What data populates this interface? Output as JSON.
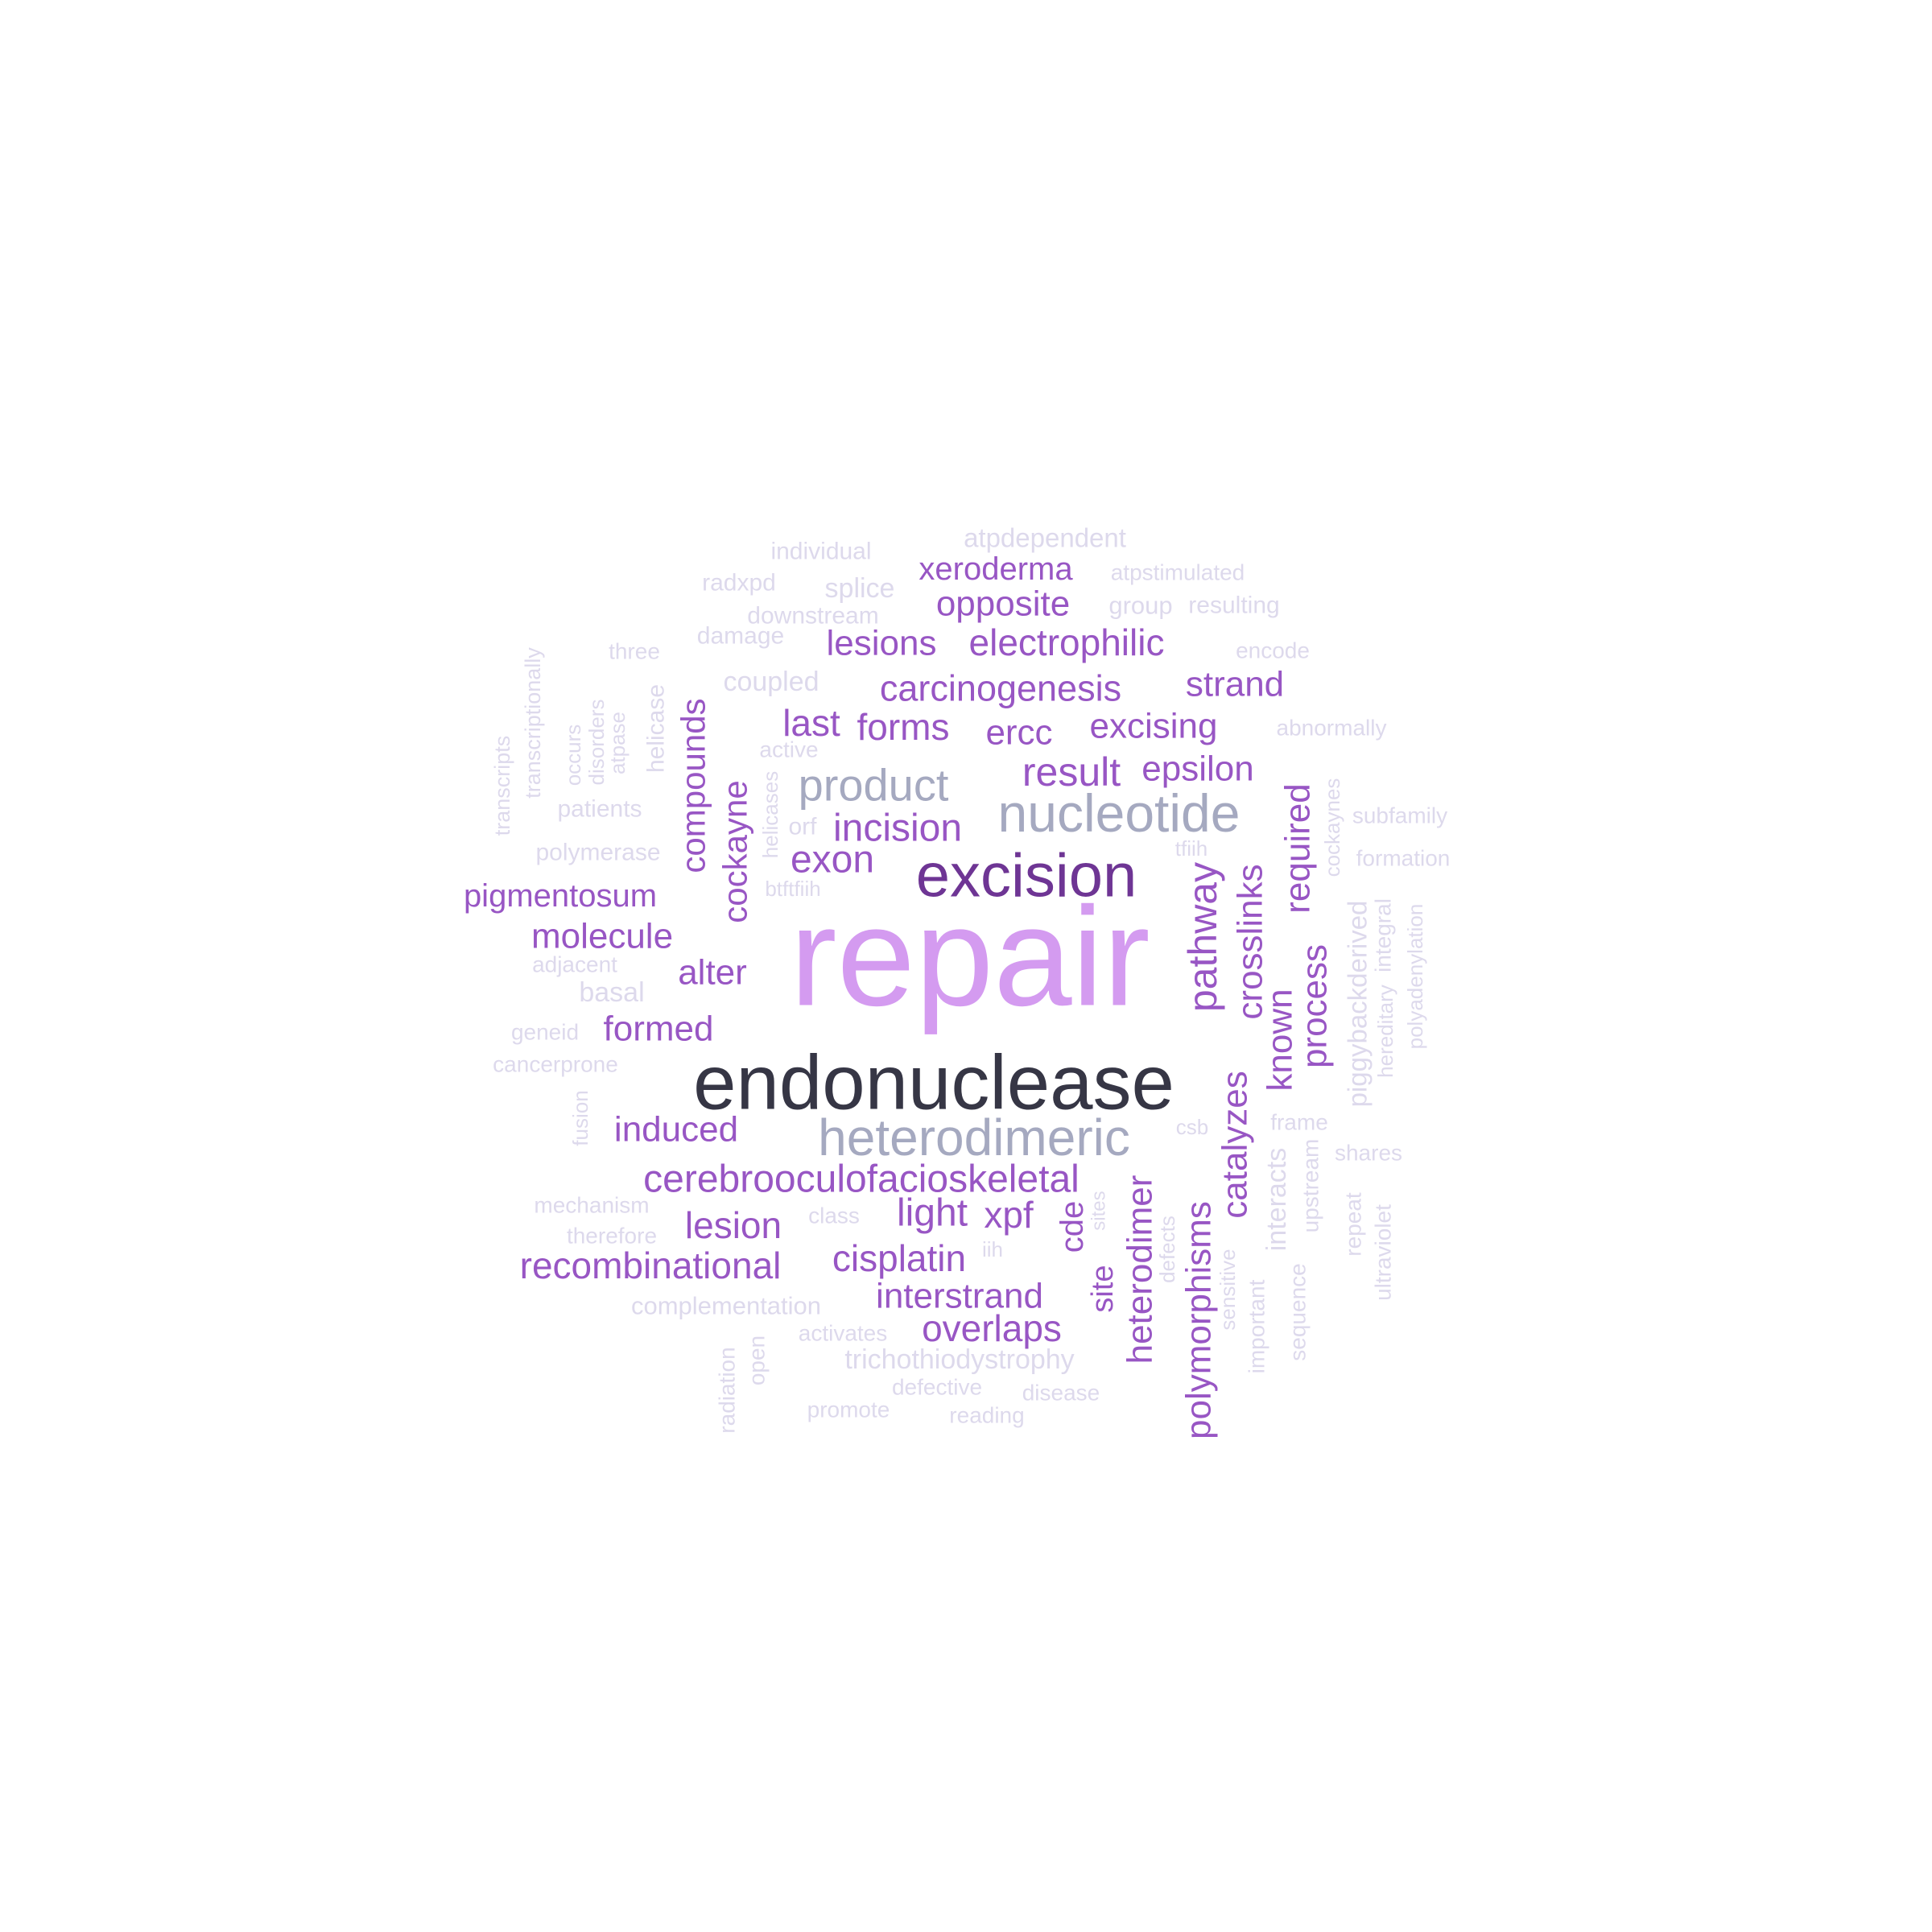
{
  "palette": {
    "c1": "#d49bf0",
    "c2": "#363645",
    "c3": "#6e3594",
    "c4": "#a5a9c0",
    "c5": "#9856c4",
    "c6": "#ddd9ec"
  },
  "words": [
    {
      "text": "repair",
      "color": "c1"
    },
    {
      "text": "endonuclease",
      "color": "c2"
    },
    {
      "text": "excision",
      "color": "c3"
    },
    {
      "text": "heterodimeric",
      "color": "c4"
    },
    {
      "text": "nucleotide",
      "color": "c4"
    },
    {
      "text": "product",
      "color": "c4"
    },
    {
      "text": "cerebrooculofacioskeletal",
      "color": "c5"
    },
    {
      "text": "recombinational",
      "color": "c5"
    },
    {
      "text": "carcinogenesis",
      "color": "c5"
    },
    {
      "text": "electrophilic",
      "color": "c5"
    },
    {
      "text": "pigmentosum",
      "color": "c5"
    },
    {
      "text": "interstrand",
      "color": "c5"
    },
    {
      "text": "polymorphisms",
      "color": "c5"
    },
    {
      "text": "heterodimer",
      "color": "c5"
    },
    {
      "text": "compounds",
      "color": "c5"
    },
    {
      "text": "cockayne",
      "color": "c5"
    },
    {
      "text": "opposite",
      "color": "c5"
    },
    {
      "text": "xeroderma",
      "color": "c5"
    },
    {
      "text": "lesions",
      "color": "c5"
    },
    {
      "text": "strand",
      "color": "c5"
    },
    {
      "text": "excising",
      "color": "c5"
    },
    {
      "text": "forms",
      "color": "c5"
    },
    {
      "text": "last",
      "color": "c5"
    },
    {
      "text": "ercc",
      "color": "c5"
    },
    {
      "text": "result",
      "color": "c5"
    },
    {
      "text": "epsilon",
      "color": "c5"
    },
    {
      "text": "incision",
      "color": "c5"
    },
    {
      "text": "exon",
      "color": "c5"
    },
    {
      "text": "molecule",
      "color": "c5"
    },
    {
      "text": "alter",
      "color": "c5"
    },
    {
      "text": "formed",
      "color": "c5"
    },
    {
      "text": "induced",
      "color": "c5"
    },
    {
      "text": "lesion",
      "color": "c5"
    },
    {
      "text": "light",
      "color": "c5"
    },
    {
      "text": "xpf",
      "color": "c5"
    },
    {
      "text": "cisplatin",
      "color": "c5"
    },
    {
      "text": "overlaps",
      "color": "c5"
    },
    {
      "text": "pathway",
      "color": "c5"
    },
    {
      "text": "crosslinks",
      "color": "c5"
    },
    {
      "text": "required",
      "color": "c5"
    },
    {
      "text": "known",
      "color": "c5"
    },
    {
      "text": "process",
      "color": "c5"
    },
    {
      "text": "catalyzes",
      "color": "c5"
    },
    {
      "text": "cde",
      "color": "c5"
    },
    {
      "text": "site",
      "color": "c5"
    },
    {
      "text": "atpdependent",
      "color": "c6"
    },
    {
      "text": "individual",
      "color": "c6"
    },
    {
      "text": "radxpd",
      "color": "c6"
    },
    {
      "text": "splice",
      "color": "c6"
    },
    {
      "text": "atpstimulated",
      "color": "c6"
    },
    {
      "text": "downstream",
      "color": "c6"
    },
    {
      "text": "group",
      "color": "c6"
    },
    {
      "text": "resulting",
      "color": "c6"
    },
    {
      "text": "damage",
      "color": "c6"
    },
    {
      "text": "three",
      "color": "c6"
    },
    {
      "text": "encode",
      "color": "c6"
    },
    {
      "text": "coupled",
      "color": "c6"
    },
    {
      "text": "abnormally",
      "color": "c6"
    },
    {
      "text": "active",
      "color": "c6"
    },
    {
      "text": "patients",
      "color": "c6"
    },
    {
      "text": "orf",
      "color": "c6"
    },
    {
      "text": "subfamily",
      "color": "c6"
    },
    {
      "text": "polymerase",
      "color": "c6"
    },
    {
      "text": "tfiih",
      "color": "c6"
    },
    {
      "text": "formation",
      "color": "c6"
    },
    {
      "text": "btftfiih",
      "color": "c6"
    },
    {
      "text": "adjacent",
      "color": "c6"
    },
    {
      "text": "basal",
      "color": "c6"
    },
    {
      "text": "geneid",
      "color": "c6"
    },
    {
      "text": "cancerprone",
      "color": "c6"
    },
    {
      "text": "csb",
      "color": "c6"
    },
    {
      "text": "frame",
      "color": "c6"
    },
    {
      "text": "shares",
      "color": "c6"
    },
    {
      "text": "mechanism",
      "color": "c6"
    },
    {
      "text": "class",
      "color": "c6"
    },
    {
      "text": "therefore",
      "color": "c6"
    },
    {
      "text": "iih",
      "color": "c6"
    },
    {
      "text": "complementation",
      "color": "c6"
    },
    {
      "text": "activates",
      "color": "c6"
    },
    {
      "text": "trichothiodystrophy",
      "color": "c6"
    },
    {
      "text": "defective",
      "color": "c6"
    },
    {
      "text": "disease",
      "color": "c6"
    },
    {
      "text": "promote",
      "color": "c6"
    },
    {
      "text": "reading",
      "color": "c6"
    },
    {
      "text": "transcriptionally",
      "color": "c6"
    },
    {
      "text": "transcripts",
      "color": "c6"
    },
    {
      "text": "occurs",
      "color": "c6"
    },
    {
      "text": "disorders",
      "color": "c6"
    },
    {
      "text": "atpase",
      "color": "c6"
    },
    {
      "text": "helicase",
      "color": "c6"
    },
    {
      "text": "helicases",
      "color": "c6"
    },
    {
      "text": "cockaynes",
      "color": "c6"
    },
    {
      "text": "piggybackderived",
      "color": "c6"
    },
    {
      "text": "integral",
      "color": "c6"
    },
    {
      "text": "polyadenylation",
      "color": "c6"
    },
    {
      "text": "hereditary",
      "color": "c6"
    },
    {
      "text": "fusion",
      "color": "c6"
    },
    {
      "text": "interacts",
      "color": "c6"
    },
    {
      "text": "upstream",
      "color": "c6"
    },
    {
      "text": "repeat",
      "color": "c6"
    },
    {
      "text": "ultraviolet",
      "color": "c6"
    },
    {
      "text": "sites",
      "color": "c6"
    },
    {
      "text": "defects",
      "color": "c6"
    },
    {
      "text": "sensitive",
      "color": "c6"
    },
    {
      "text": "important",
      "color": "c6"
    },
    {
      "text": "sequence",
      "color": "c6"
    },
    {
      "text": "radiation",
      "color": "c6"
    },
    {
      "text": "open",
      "color": "c6"
    }
  ]
}
